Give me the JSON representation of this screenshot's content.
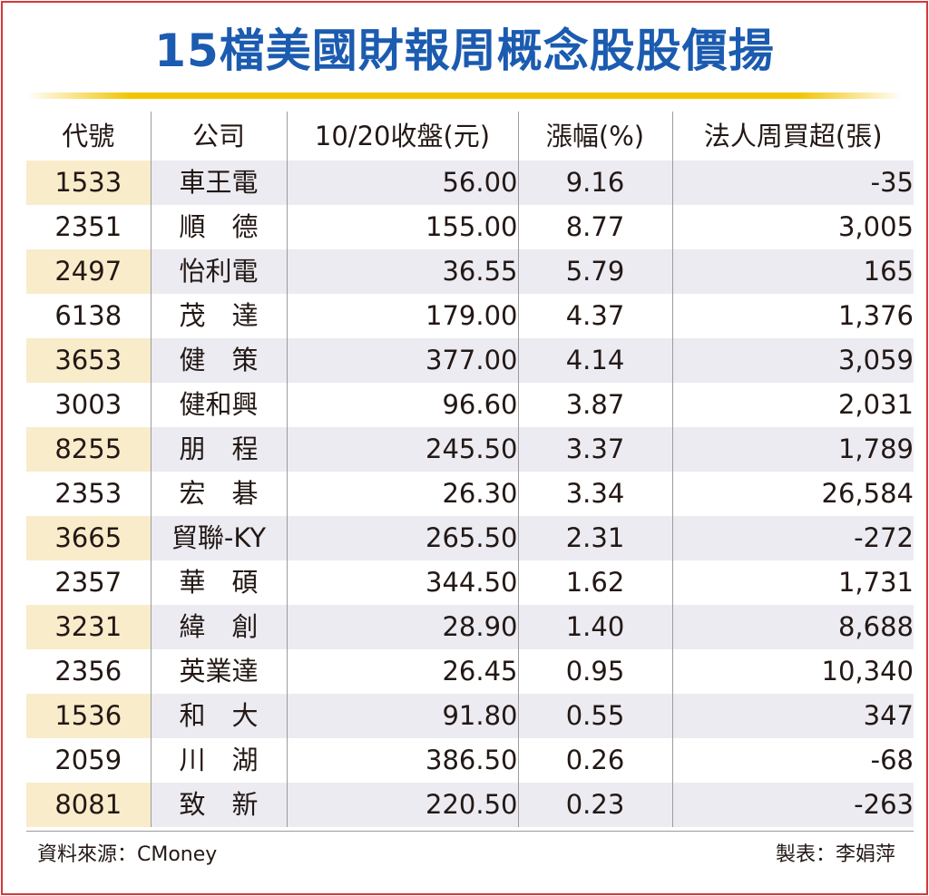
{
  "title": "15檔美國財報周概念股股價揚",
  "colors": {
    "title": "#1b5bb0",
    "accent_rule": "#f2c400",
    "border": "#d9363e",
    "stripe": "#ebebf1",
    "code_stripe": "#f8eccb"
  },
  "table": {
    "headers": [
      "代號",
      "公司",
      "10/20收盤(元)",
      "漲幅(%)",
      "法人周買超(張)"
    ],
    "rows": [
      [
        "1533",
        "車王電",
        "56.00",
        "9.16",
        "-35"
      ],
      [
        "2351",
        "順　德",
        "155.00",
        "8.77",
        "3,005"
      ],
      [
        "2497",
        "怡利電",
        "36.55",
        "5.79",
        "165"
      ],
      [
        "6138",
        "茂　達",
        "179.00",
        "4.37",
        "1,376"
      ],
      [
        "3653",
        "健　策",
        "377.00",
        "4.14",
        "3,059"
      ],
      [
        "3003",
        "健和興",
        "96.60",
        "3.87",
        "2,031"
      ],
      [
        "8255",
        "朋　程",
        "245.50",
        "3.37",
        "1,789"
      ],
      [
        "2353",
        "宏　碁",
        "26.30",
        "3.34",
        "26,584"
      ],
      [
        "3665",
        "貿聯-KY",
        "265.50",
        "2.31",
        "-272"
      ],
      [
        "2357",
        "華　碩",
        "344.50",
        "1.62",
        "1,731"
      ],
      [
        "3231",
        "緯　創",
        "28.90",
        "1.40",
        "8,688"
      ],
      [
        "2356",
        "英業達",
        "26.45",
        "0.95",
        "10,340"
      ],
      [
        "1536",
        "和　大",
        "91.80",
        "0.55",
        "347"
      ],
      [
        "2059",
        "川　湖",
        "386.50",
        "0.26",
        "-68"
      ],
      [
        "8081",
        "致　新",
        "220.50",
        "0.23",
        "-263"
      ]
    ]
  },
  "footer": {
    "source": "資料來源：CMoney",
    "maker": "製表：李娟萍"
  }
}
